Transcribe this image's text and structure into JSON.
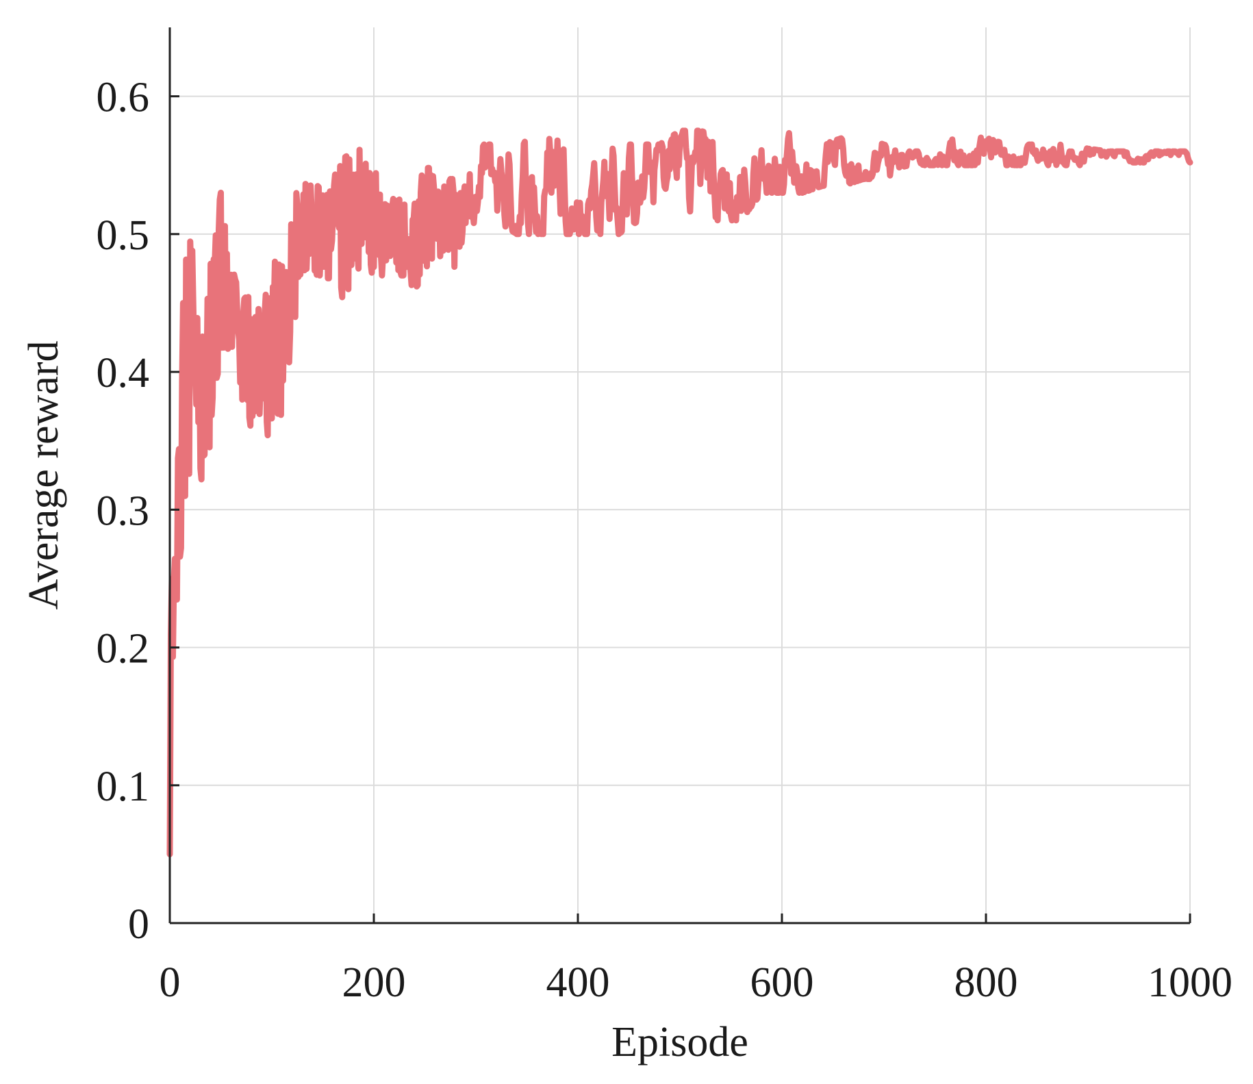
{
  "chart_data": {
    "type": "line",
    "title": "",
    "xlabel": "Episode",
    "ylabel": "Average reward",
    "xlim": [
      0,
      1000
    ],
    "ylim": [
      0,
      0.65
    ],
    "xticks": [
      0,
      200,
      400,
      600,
      800,
      1000
    ],
    "xtick_labels": [
      "0",
      "200",
      "400",
      "600",
      "800",
      "1000"
    ],
    "yticks": [
      0,
      0.1,
      0.2,
      0.3,
      0.4,
      0.5,
      0.6
    ],
    "ytick_labels": [
      "0",
      "0.1",
      "0.2",
      "0.3",
      "0.4",
      "0.5",
      "0.6"
    ],
    "grid": true,
    "legend": "none",
    "colors": {
      "line": "#e8737a",
      "axis": "#222222",
      "grid": "#dcdcdc"
    },
    "series": [
      {
        "name": "",
        "envelope_x": [
          0,
          5,
          10,
          15,
          20,
          25,
          30,
          40,
          50,
          60,
          70,
          80,
          90,
          100,
          110,
          120,
          130,
          140,
          150,
          160,
          170,
          180,
          190,
          200,
          210,
          220,
          230,
          240,
          250,
          260,
          270,
          280,
          290,
          300,
          320,
          340,
          360,
          380,
          400,
          420,
          440,
          460,
          480,
          500,
          520,
          540,
          560,
          580,
          600,
          620,
          640,
          660,
          680,
          700,
          720,
          740,
          760,
          780,
          800,
          820,
          840,
          860,
          880,
          900,
          920,
          940,
          960,
          980,
          1000
        ],
        "envelope_high": [
          0.25,
          0.34,
          0.345,
          0.52,
          0.5,
          0.47,
          0.44,
          0.48,
          0.53,
          0.48,
          0.45,
          0.46,
          0.44,
          0.48,
          0.48,
          0.52,
          0.55,
          0.54,
          0.53,
          0.565,
          0.555,
          0.56,
          0.565,
          0.55,
          0.53,
          0.525,
          0.53,
          0.525,
          0.55,
          0.545,
          0.54,
          0.54,
          0.535,
          0.565,
          0.565,
          0.565,
          0.57,
          0.57,
          0.565,
          0.555,
          0.565,
          0.565,
          0.565,
          0.575,
          0.575,
          0.57,
          0.575,
          0.57,
          0.575,
          0.57,
          0.565,
          0.57,
          0.57,
          0.565,
          0.56,
          0.56,
          0.57,
          0.57,
          0.57,
          0.565,
          0.565,
          0.565,
          0.565,
          0.562,
          0.56,
          0.56,
          0.56,
          0.56,
          0.56
        ],
        "envelope_low": [
          0.05,
          0.22,
          0.25,
          0.31,
          0.33,
          0.34,
          0.32,
          0.34,
          0.37,
          0.42,
          0.37,
          0.36,
          0.36,
          0.35,
          0.35,
          0.42,
          0.46,
          0.47,
          0.46,
          0.46,
          0.45,
          0.47,
          0.48,
          0.47,
          0.47,
          0.47,
          0.47,
          0.46,
          0.47,
          0.47,
          0.47,
          0.47,
          0.5,
          0.51,
          0.51,
          0.5,
          0.5,
          0.5,
          0.5,
          0.5,
          0.5,
          0.51,
          0.51,
          0.51,
          0.51,
          0.51,
          0.51,
          0.53,
          0.53,
          0.53,
          0.535,
          0.535,
          0.54,
          0.54,
          0.545,
          0.55,
          0.55,
          0.55,
          0.55,
          0.55,
          0.55,
          0.55,
          0.55,
          0.55,
          0.552,
          0.552,
          0.552,
          0.552,
          0.552
        ]
      }
    ]
  }
}
